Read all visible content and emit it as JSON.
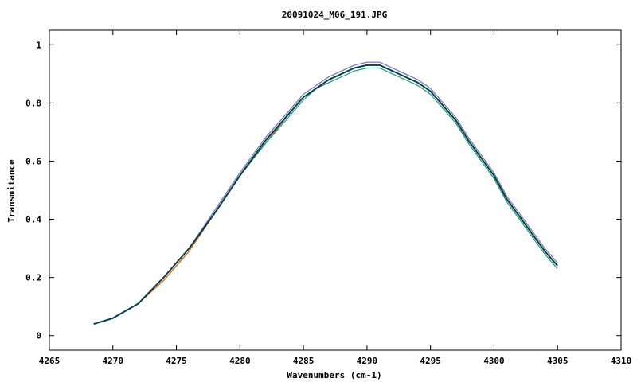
{
  "chart_data": {
    "type": "line",
    "title": "20091024_M06_191.JPG",
    "xlabel": "Wavenumbers (cm-1)",
    "ylabel": "Transmitance",
    "xlim": [
      4265,
      4310
    ],
    "ylim": [
      -0.05,
      1.05
    ],
    "xticks": [
      {
        "value": 4265,
        "label": "4265"
      },
      {
        "value": 4270,
        "label": "4270"
      },
      {
        "value": 4275,
        "label": "4275"
      },
      {
        "value": 4280,
        "label": "4280"
      },
      {
        "value": 4285,
        "label": "4285"
      },
      {
        "value": 4290,
        "label": "4290"
      },
      {
        "value": 4295,
        "label": "4295"
      },
      {
        "value": 4300,
        "label": "4300"
      },
      {
        "value": 4305,
        "label": "4305"
      },
      {
        "value": 4310,
        "label": "4310"
      }
    ],
    "yticks": [
      {
        "value": 0,
        "label": "0"
      },
      {
        "value": 0.2,
        "label": "0.2"
      },
      {
        "value": 0.4,
        "label": "0.4"
      },
      {
        "value": 0.6,
        "label": "0.6"
      },
      {
        "value": 0.8,
        "label": "0.8"
      },
      {
        "value": 1,
        "label": "1"
      }
    ],
    "grid": false,
    "legend": "none",
    "series": [
      {
        "color": "#d95f02",
        "x": [
          4268.5,
          4270,
          4272,
          4274,
          4276,
          4278,
          4280,
          4282,
          4284,
          4285,
          4286,
          4287,
          4288,
          4289,
          4290,
          4291,
          4292,
          4293,
          4294,
          4295,
          4296,
          4297,
          4298,
          4299,
          4300,
          4301,
          4302,
          4303,
          4304,
          4305
        ],
        "y": [
          0.04,
          0.06,
          0.11,
          0.19,
          0.29,
          0.42,
          0.55,
          0.66,
          0.77,
          0.82,
          0.85,
          0.88,
          0.9,
          0.92,
          0.93,
          0.93,
          0.91,
          0.89,
          0.87,
          0.84,
          0.79,
          0.74,
          0.67,
          0.61,
          0.55,
          0.47,
          0.41,
          0.35,
          0.29,
          0.24
        ]
      },
      {
        "color": "#1b9e77",
        "x": [
          4268.5,
          4270,
          4272,
          4274,
          4276,
          4278,
          4280,
          4282,
          4284,
          4285,
          4286,
          4287,
          4288,
          4289,
          4290,
          4291,
          4292,
          4293,
          4294,
          4295,
          4296,
          4297,
          4298,
          4299,
          4300,
          4301,
          4302,
          4303,
          4304,
          4305
        ],
        "y": [
          0.04,
          0.06,
          0.11,
          0.2,
          0.3,
          0.42,
          0.55,
          0.66,
          0.76,
          0.81,
          0.85,
          0.87,
          0.89,
          0.91,
          0.92,
          0.92,
          0.9,
          0.88,
          0.86,
          0.83,
          0.78,
          0.73,
          0.66,
          0.6,
          0.54,
          0.46,
          0.4,
          0.34,
          0.28,
          0.23
        ]
      },
      {
        "color": "#7570b3",
        "x": [
          4268.5,
          4270,
          4272,
          4274,
          4276,
          4278,
          4280,
          4282,
          4284,
          4285,
          4286,
          4287,
          4288,
          4289,
          4290,
          4291,
          4292,
          4293,
          4294,
          4295,
          4296,
          4297,
          4298,
          4299,
          4300,
          4301,
          4302,
          4303,
          4304,
          4305
        ],
        "y": [
          0.04,
          0.06,
          0.11,
          0.2,
          0.3,
          0.43,
          0.56,
          0.68,
          0.78,
          0.83,
          0.86,
          0.89,
          0.91,
          0.93,
          0.94,
          0.94,
          0.92,
          0.9,
          0.88,
          0.85,
          0.8,
          0.75,
          0.68,
          0.62,
          0.56,
          0.48,
          0.42,
          0.36,
          0.3,
          0.25
        ]
      },
      {
        "color": "#0b3d4a",
        "x": [
          4268.5,
          4270,
          4272,
          4274,
          4276,
          4278,
          4280,
          4282,
          4284,
          4285,
          4286,
          4287,
          4288,
          4289,
          4290,
          4291,
          4292,
          4293,
          4294,
          4295,
          4296,
          4297,
          4298,
          4299,
          4300,
          4301,
          4302,
          4303,
          4304,
          4305
        ],
        "y": [
          0.04,
          0.06,
          0.11,
          0.2,
          0.3,
          0.42,
          0.55,
          0.67,
          0.77,
          0.82,
          0.85,
          0.88,
          0.9,
          0.92,
          0.93,
          0.93,
          0.91,
          0.89,
          0.87,
          0.84,
          0.79,
          0.74,
          0.67,
          0.61,
          0.55,
          0.47,
          0.41,
          0.35,
          0.29,
          0.24
        ]
      }
    ]
  }
}
